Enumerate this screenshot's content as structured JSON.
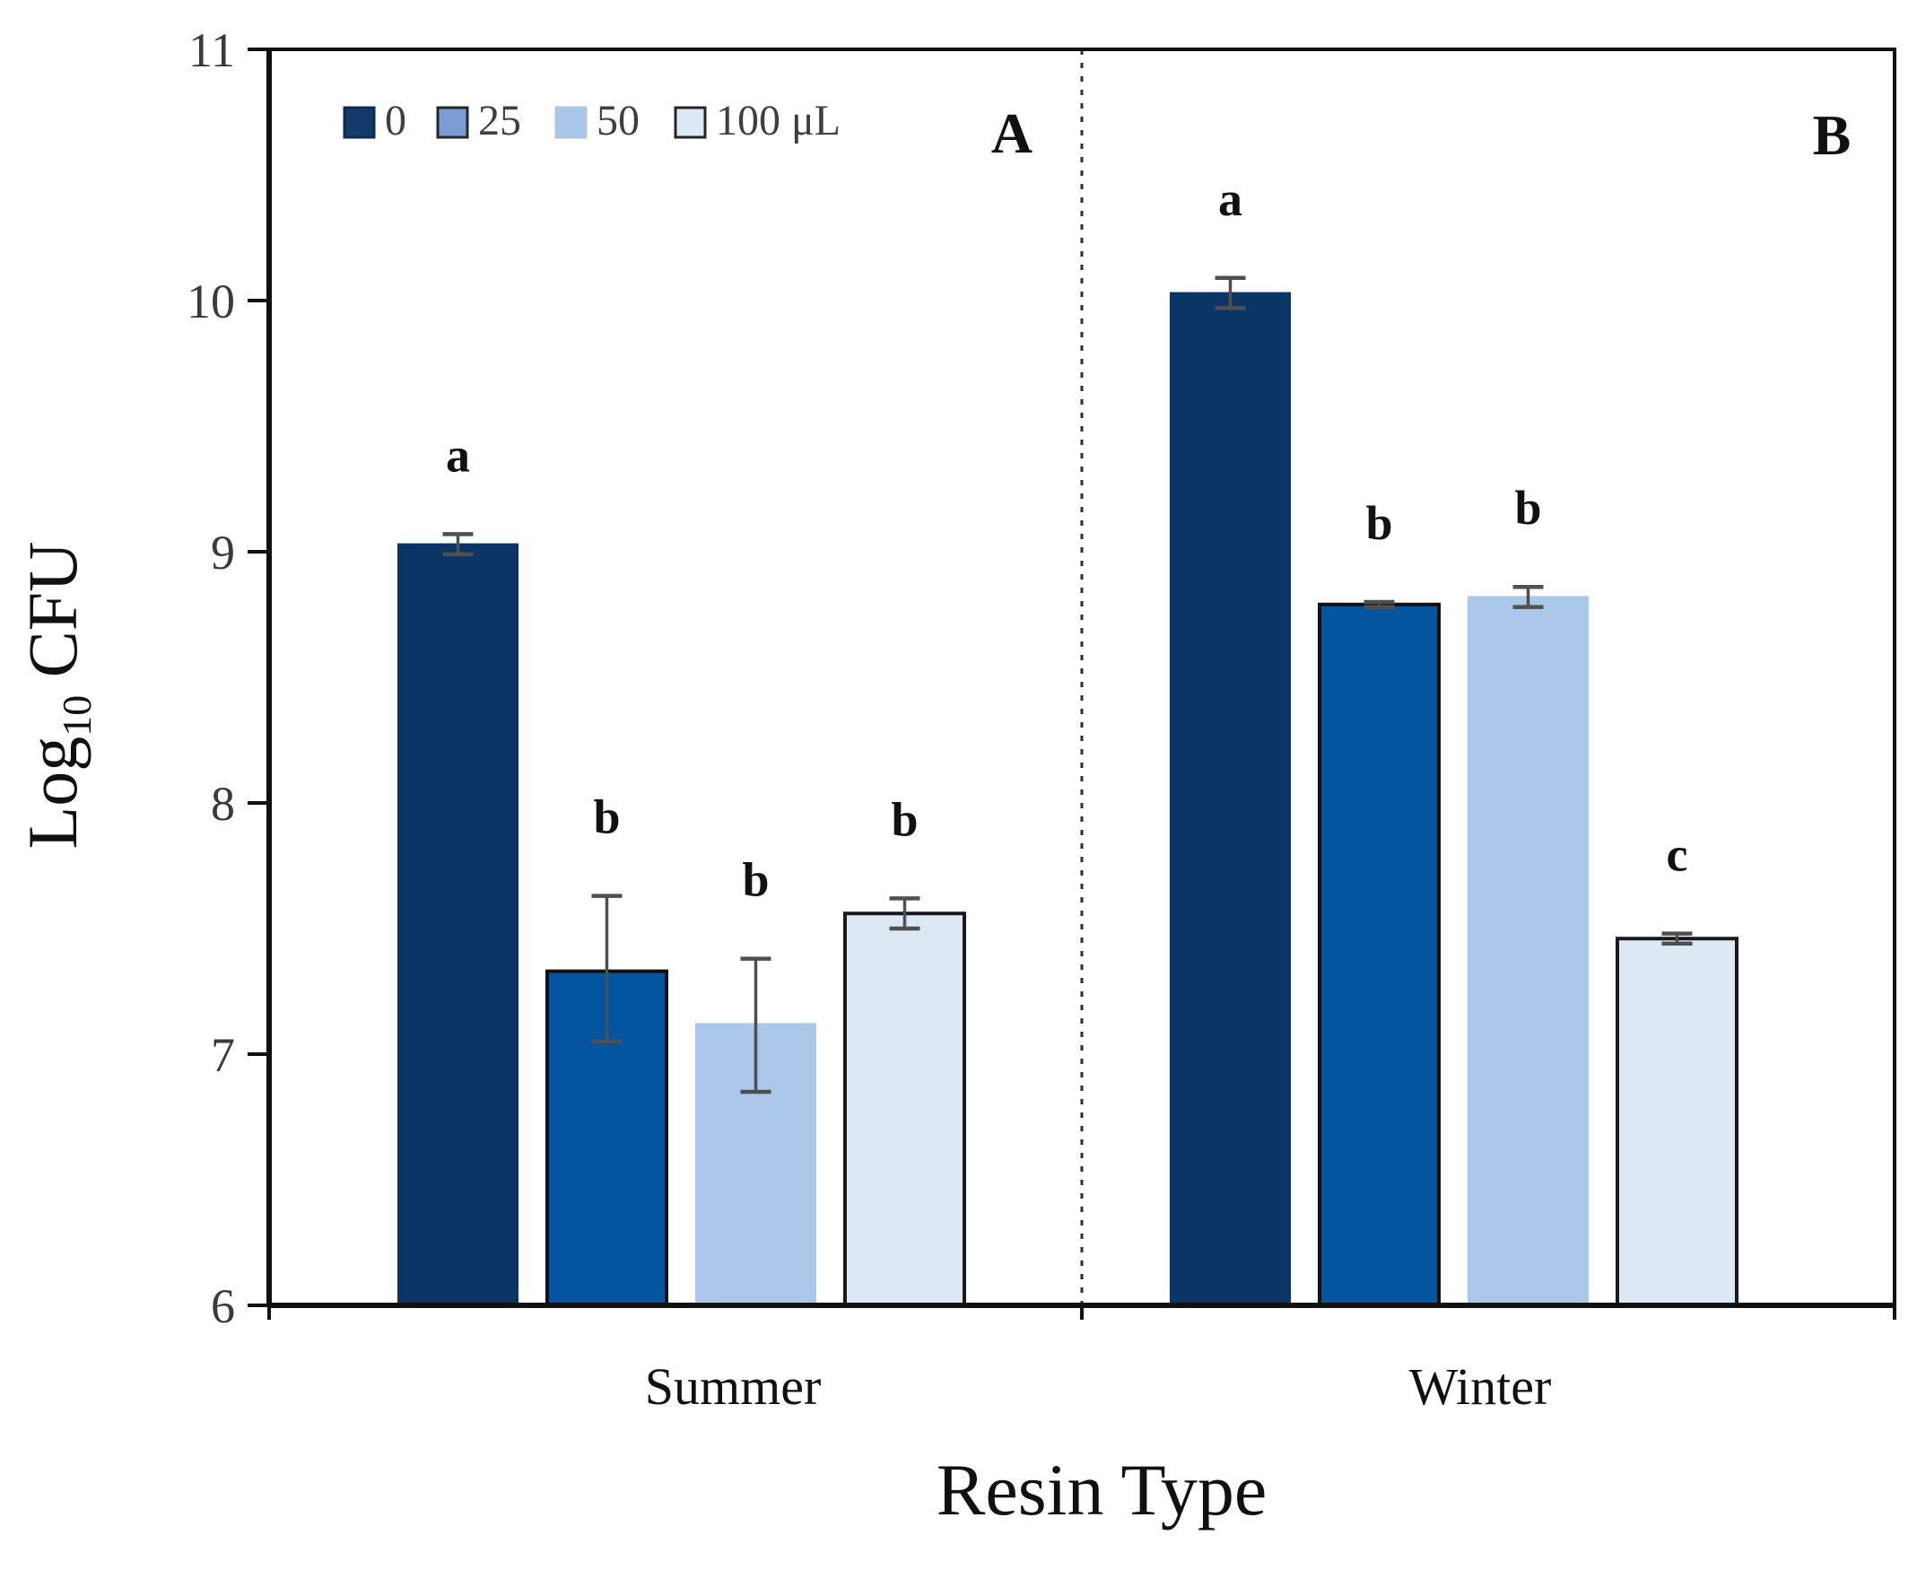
{
  "figure": {
    "panels": [
      {
        "label": "A"
      },
      {
        "label": "B"
      }
    ],
    "y_axis": {
      "title_pre": "Log",
      "title_sub": "10",
      "title_post": " CFU",
      "min": 6,
      "max": 11,
      "tick_labels": [
        "11",
        "10",
        "9",
        "8",
        "7",
        "6"
      ]
    },
    "x_axis": {
      "title": "Resin Type",
      "category_labels": [
        "Summer",
        "Winter"
      ]
    },
    "legend": {
      "items": [
        {
          "label": "0",
          "fill": "#123a6b",
          "border": "#0d2c52"
        },
        {
          "label": "25",
          "fill": "#7d9cd3",
          "border": "#262626"
        },
        {
          "label": "50",
          "fill": "#a9c5e8",
          "border": "#a9c5e8"
        },
        {
          "label": "100 μL",
          "fill": "#dce9f5",
          "border": "#262626"
        }
      ]
    },
    "colors": {
      "error_bar": "#4f4f4f",
      "axis": "#111111",
      "divider": "#2e2e2e",
      "tick_text": "#3a3a3a",
      "legend_text": "#3f3f3f"
    }
  },
  "chart_data": {
    "type": "bar",
    "title": "",
    "xlabel": "Resin Type",
    "ylabel": "Log10 CFU",
    "ylim": [
      6,
      11
    ],
    "yticks": [
      6,
      7,
      8,
      9,
      10,
      11
    ],
    "grid": false,
    "legend_position": "inside-top-left",
    "panel_labels": [
      "A",
      "B"
    ],
    "panel_divider": "dashed-vertical-between-categories",
    "categories": [
      "Summer",
      "Winter"
    ],
    "series": [
      {
        "name": "0",
        "fill": "#0b3564",
        "border": "#0b3564",
        "dark_border": false,
        "values": [
          9.03,
          10.03
        ],
        "err_up": [
          0.04,
          0.06
        ],
        "err_down": [
          0.04,
          0.06
        ],
        "sig_letters": [
          "a",
          "a"
        ]
      },
      {
        "name": "25",
        "fill": "#0455a0",
        "border": "#111111",
        "dark_border": true,
        "values": [
          7.33,
          8.79
        ],
        "err_up": [
          0.3,
          0.01
        ],
        "err_down": [
          0.28,
          0.01
        ],
        "sig_letters": [
          "b",
          "b"
        ]
      },
      {
        "name": "50",
        "fill": "#abc7e9",
        "border": "#abc7e9",
        "dark_border": false,
        "values": [
          7.12,
          8.82
        ],
        "err_up": [
          0.26,
          0.04
        ],
        "err_down": [
          0.27,
          0.04
        ],
        "sig_letters": [
          "b",
          "b"
        ]
      },
      {
        "name": "100 μL",
        "fill": "#dce9f5",
        "border": "#1a1a1a",
        "dark_border": true,
        "values": [
          7.56,
          7.46
        ],
        "err_up": [
          0.06,
          0.02
        ],
        "err_down": [
          0.06,
          0.02
        ],
        "sig_letters": [
          "b",
          "c"
        ]
      }
    ]
  }
}
